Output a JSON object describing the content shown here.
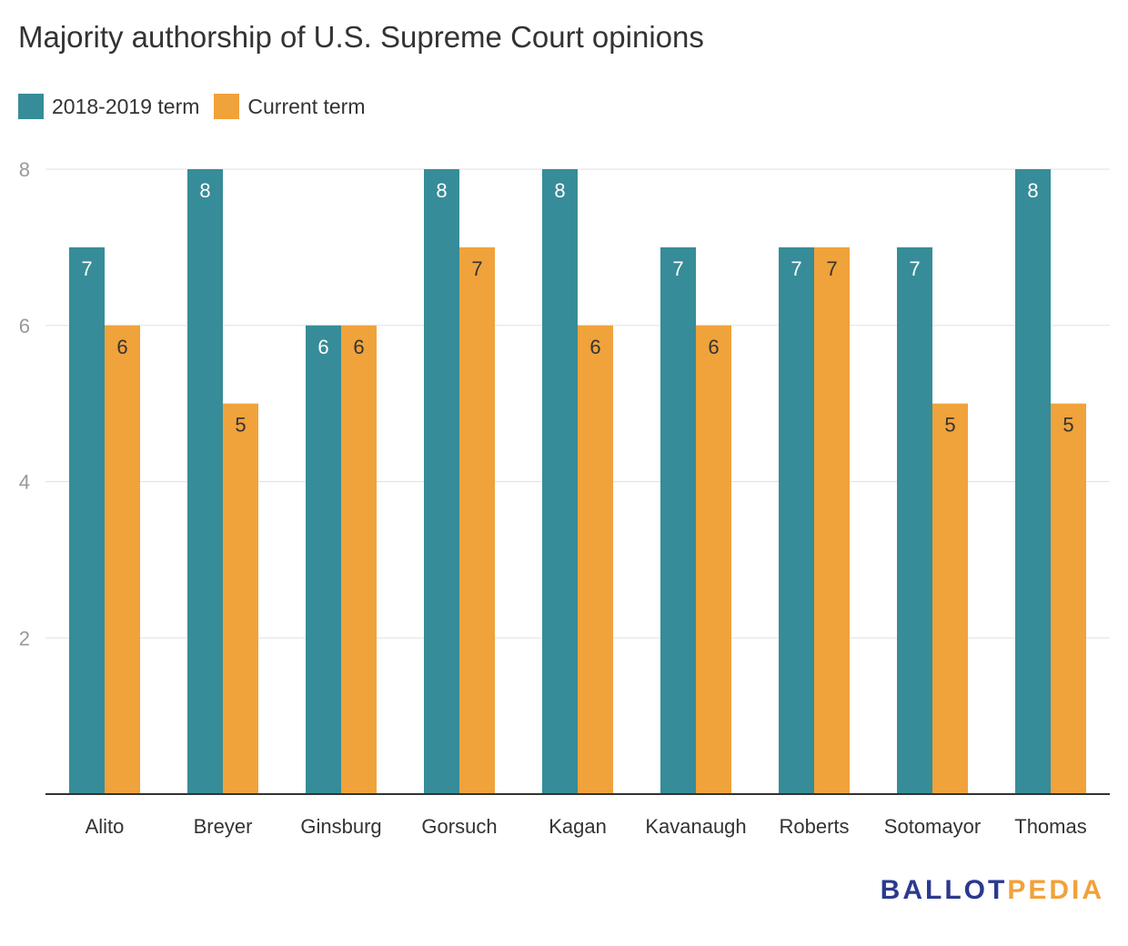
{
  "chart_data": {
    "type": "bar",
    "title": "Majority authorship of U.S. Supreme Court opinions",
    "categories": [
      "Alito",
      "Breyer",
      "Ginsburg",
      "Gorsuch",
      "Kagan",
      "Kavanaugh",
      "Roberts",
      "Sotomayor",
      "Thomas"
    ],
    "series": [
      {
        "name": "2018-2019 term",
        "color": "#368c98",
        "values": [
          7,
          8,
          6,
          8,
          8,
          7,
          7,
          7,
          8
        ]
      },
      {
        "name": "Current term",
        "color": "#f0a23b",
        "values": [
          6,
          5,
          6,
          7,
          6,
          6,
          7,
          5,
          5
        ]
      }
    ],
    "ylim": [
      0,
      8
    ],
    "yticks": [
      2,
      4,
      6,
      8
    ],
    "grid": true,
    "legend_position": "top-left",
    "data_labels": true
  },
  "logo": {
    "part1": "BALLOT",
    "part2": "PEDIA"
  }
}
